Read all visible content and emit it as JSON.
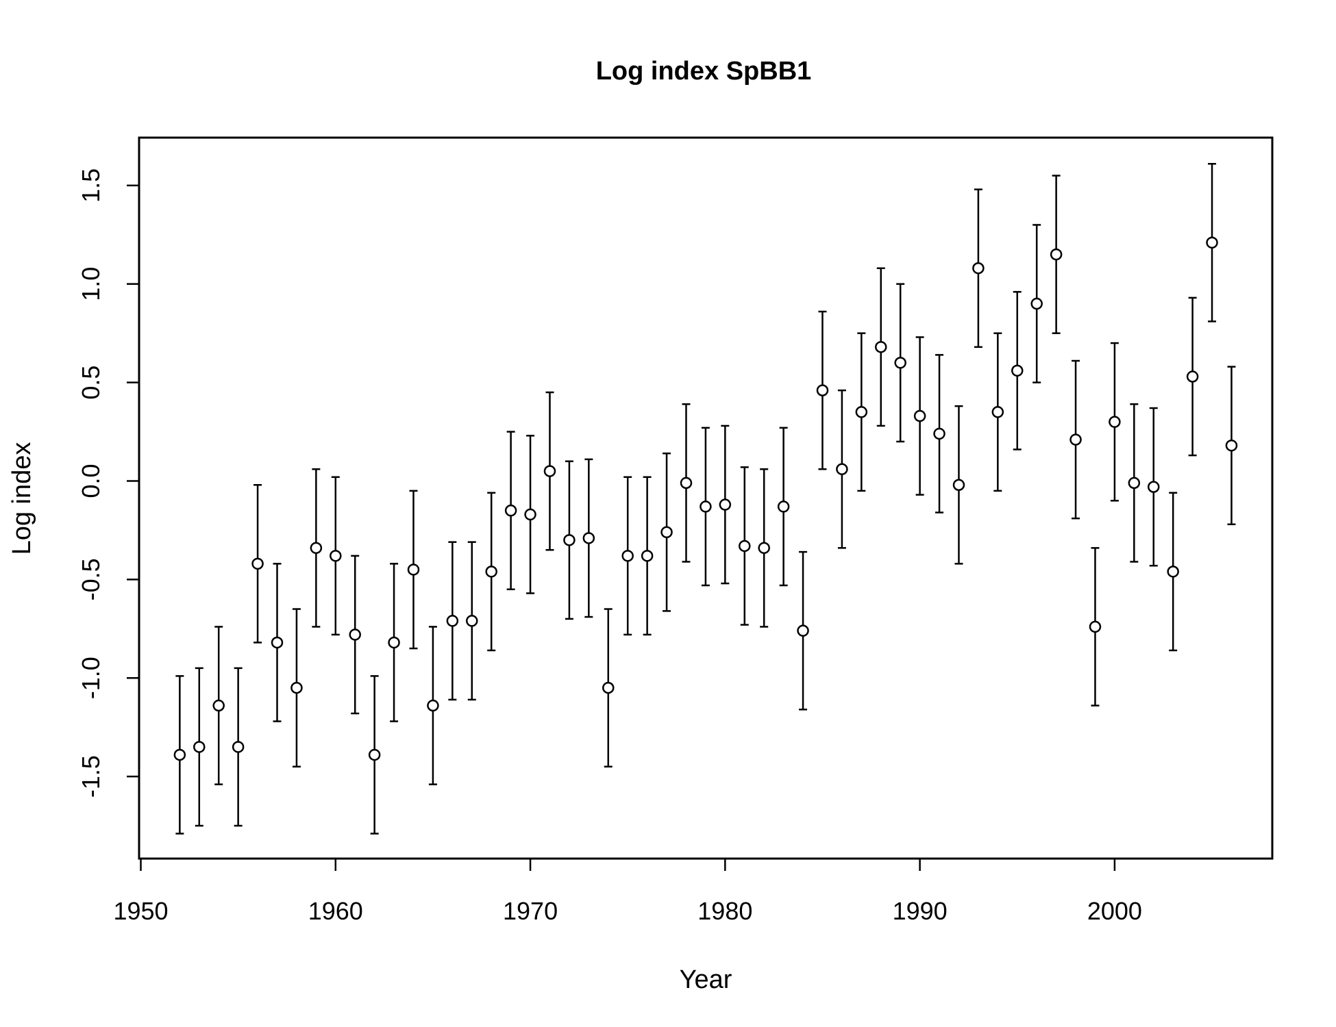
{
  "chart_data": {
    "type": "scatter",
    "title": "Log index SpBB1",
    "xlabel": "Year",
    "ylabel": "Log index",
    "xlim": [
      1950,
      2008
    ],
    "ylim": [
      -1.9,
      1.75
    ],
    "x_ticks": [
      1950,
      1960,
      1970,
      1980,
      1990,
      2000
    ],
    "x_tick_labels": [
      "1950",
      "1960",
      "1970",
      "1980",
      "1990",
      "2000"
    ],
    "y_ticks": [
      -1.5,
      -1.0,
      -0.5,
      0.0,
      0.5,
      1.0,
      1.5
    ],
    "y_tick_labels": [
      "-1.5",
      "-1.0",
      "-0.5",
      "0.0",
      "0.5",
      "1.0",
      "1.5"
    ],
    "grid": false,
    "error_bars": true,
    "series": [
      {
        "x": [
          1952,
          1953,
          1954,
          1955,
          1956,
          1957,
          1958,
          1959,
          1960,
          1961,
          1962,
          1963,
          1964,
          1965,
          1966,
          1967,
          1968,
          1969,
          1970,
          1971,
          1972,
          1973,
          1974,
          1975,
          1976,
          1977,
          1978,
          1979,
          1980,
          1981,
          1982,
          1983,
          1984,
          1985,
          1986,
          1987,
          1988,
          1989,
          1990,
          1991,
          1992,
          1993,
          1994,
          1995,
          1996,
          1997,
          1998,
          1999,
          2000,
          2001,
          2002,
          2003,
          2004,
          2005,
          2006
        ],
        "y": [
          -1.39,
          -1.35,
          -1.14,
          -1.35,
          -0.42,
          -0.82,
          -1.05,
          -0.34,
          -0.38,
          -0.78,
          -1.39,
          -0.82,
          -0.45,
          -1.14,
          -0.71,
          -0.71,
          -0.46,
          -0.15,
          -0.17,
          0.05,
          -0.3,
          -0.29,
          -1.05,
          -0.38,
          -0.38,
          -0.26,
          -0.01,
          -0.13,
          -0.12,
          -0.33,
          -0.34,
          -0.13,
          -0.76,
          0.46,
          0.06,
          0.35,
          0.68,
          0.6,
          0.33,
          0.24,
          -0.02,
          1.08,
          0.35,
          0.56,
          0.9,
          1.15,
          0.21,
          -0.74,
          0.3,
          -0.01,
          -0.03,
          -0.46,
          0.53,
          1.21,
          0.18
        ],
        "lower": [
          -1.79,
          -1.75,
          -1.54,
          -1.75,
          -0.82,
          -1.22,
          -1.45,
          -0.74,
          -0.78,
          -1.18,
          -1.79,
          -1.22,
          -0.85,
          -1.54,
          -1.11,
          -1.11,
          -0.86,
          -0.55,
          -0.57,
          -0.35,
          -0.7,
          -0.69,
          -1.45,
          -0.78,
          -0.78,
          -0.66,
          -0.41,
          -0.53,
          -0.52,
          -0.73,
          -0.74,
          -0.53,
          -1.16,
          0.06,
          -0.34,
          -0.05,
          0.28,
          0.2,
          -0.07,
          -0.16,
          -0.42,
          0.68,
          -0.05,
          0.16,
          0.5,
          0.75,
          -0.19,
          -1.14,
          -0.1,
          -0.41,
          -0.43,
          -0.86,
          0.13,
          0.81,
          -0.22
        ],
        "upper": [
          -0.99,
          -0.95,
          -0.74,
          -0.95,
          -0.02,
          -0.42,
          -0.65,
          0.06,
          0.02,
          -0.38,
          -0.99,
          -0.42,
          -0.05,
          -0.74,
          -0.31,
          -0.31,
          -0.06,
          0.25,
          0.23,
          0.45,
          0.1,
          0.11,
          -0.65,
          0.02,
          0.02,
          0.14,
          0.39,
          0.27,
          0.28,
          0.07,
          0.06,
          0.27,
          -0.36,
          0.86,
          0.46,
          0.75,
          1.08,
          1.0,
          0.73,
          0.64,
          0.38,
          1.48,
          0.75,
          0.96,
          1.3,
          1.55,
          0.61,
          -0.34,
          0.7,
          0.39,
          0.37,
          -0.06,
          0.93,
          1.61,
          0.58
        ]
      }
    ]
  }
}
